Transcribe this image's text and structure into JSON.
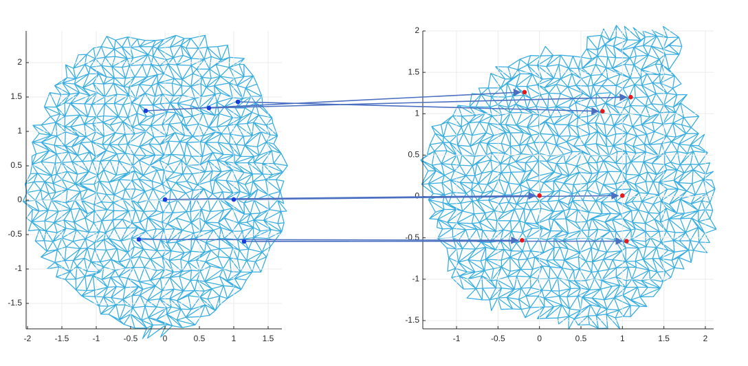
{
  "chart_data": [
    {
      "type": "scatter",
      "x": [
        -0.28,
        0.64,
        1.06,
        0,
        1.0,
        -0.38,
        1.15
      ],
      "series": [
        {
          "color": "#1a3be0",
          "values": [
            1.3,
            1.34,
            1.43,
            0.01,
            0.01,
            -0.57,
            -0.6
          ]
        }
      ],
      "xlim": [
        -2,
        1.7
      ],
      "ylim": [
        -1.87,
        2.46
      ],
      "xticks": [
        -2,
        -1.5,
        -1,
        -0.5,
        0,
        0.5,
        1,
        1.5
      ],
      "yticks": [
        -1.5,
        -1,
        -0.5,
        0,
        0.5,
        1,
        1.5,
        2
      ],
      "grid": true,
      "mesh_color": "#3aaee0"
    },
    {
      "type": "scatter",
      "x": [
        -0.18,
        1.1,
        0.76,
        0,
        1.0,
        -0.21,
        1.05
      ],
      "series": [
        {
          "color": "#e3191c",
          "values": [
            1.26,
            1.2,
            1.03,
            0.01,
            0.01,
            -0.53,
            -0.54
          ]
        }
      ],
      "xlim": [
        -1.39,
        2.1
      ],
      "ylim": [
        -1.6,
        2.0
      ],
      "xticks": [
        -1,
        -0.5,
        0,
        0.5,
        1,
        1.5,
        2
      ],
      "yticks": [
        -1.5,
        -1,
        -0.5,
        0,
        0.5,
        1,
        1.5,
        2
      ],
      "grid": true,
      "mesh_color": "#3aaee0"
    }
  ]
}
